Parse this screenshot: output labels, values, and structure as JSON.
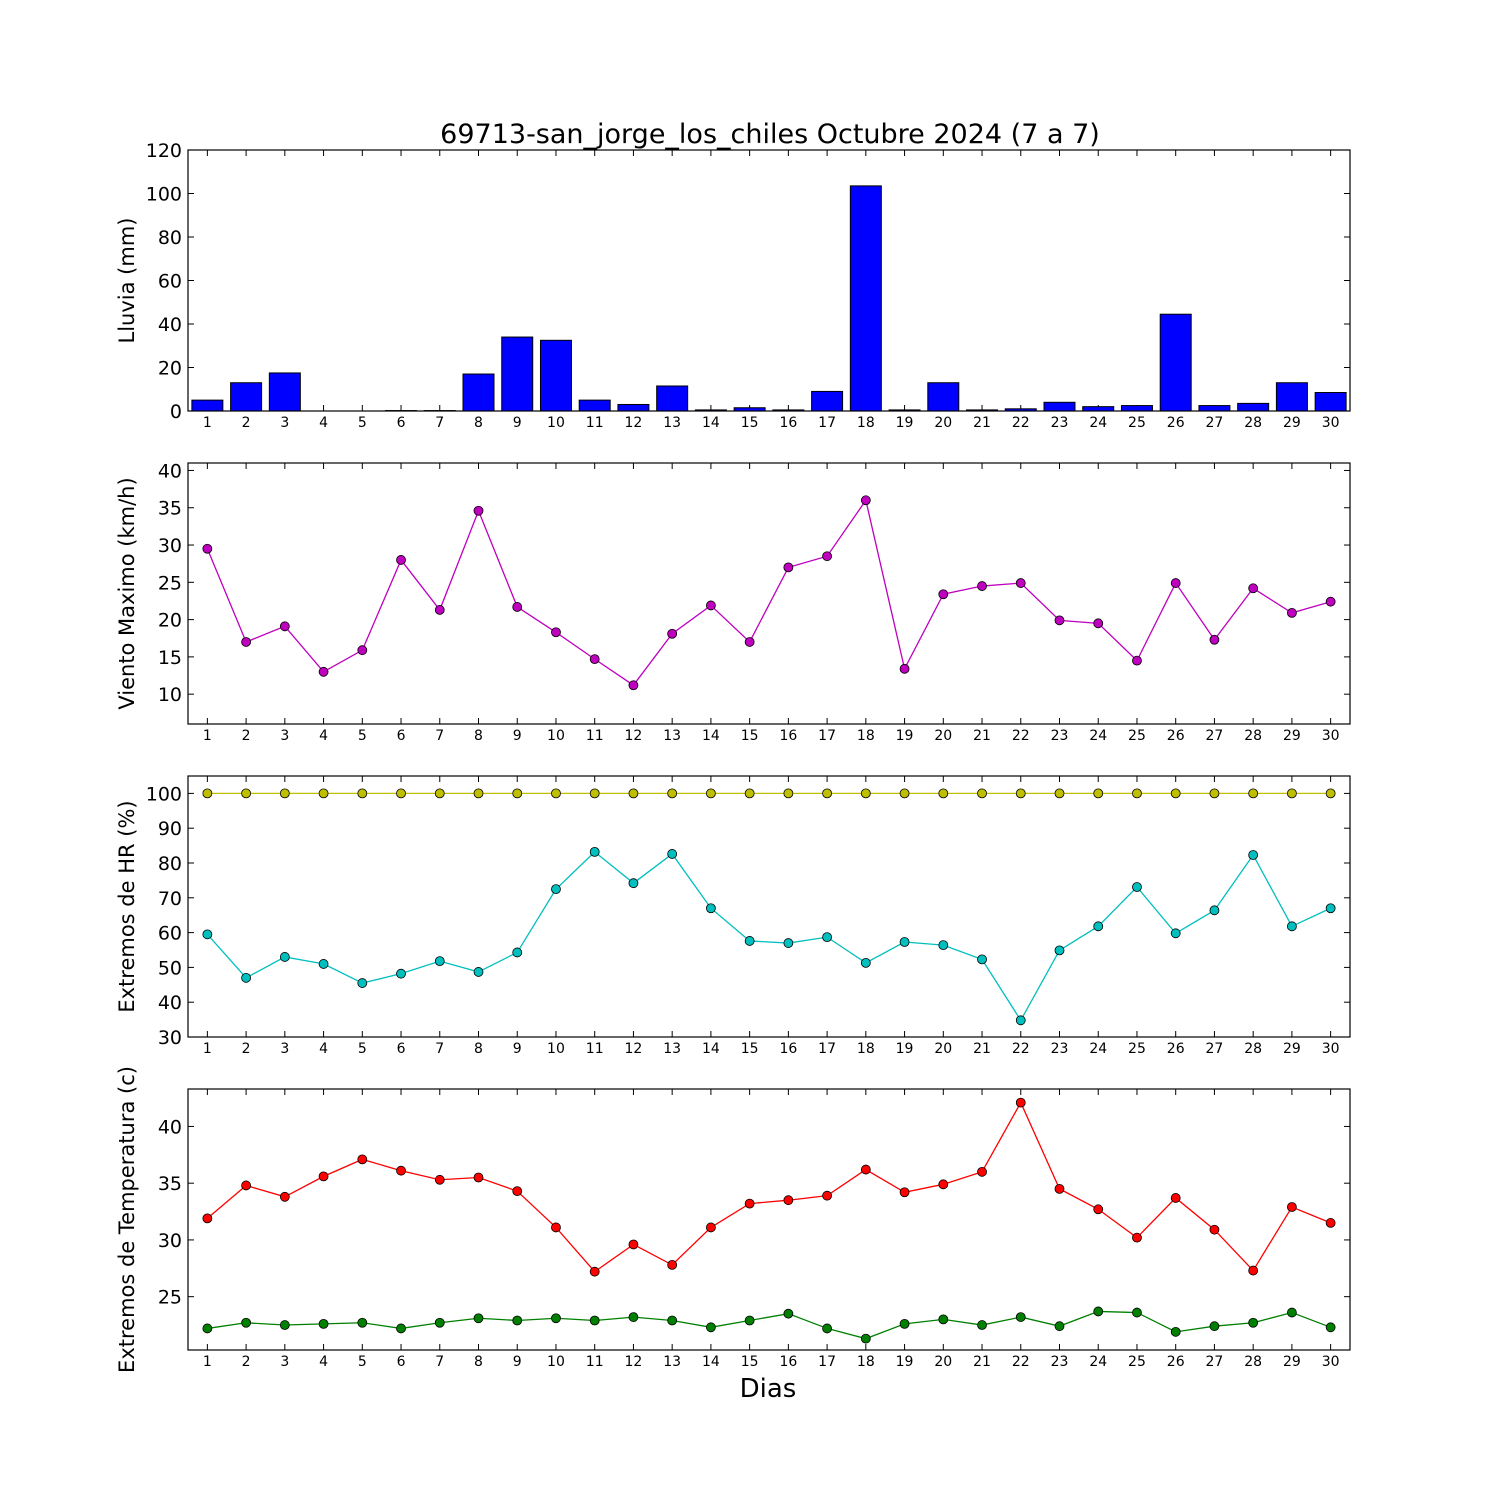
{
  "chart_data": {
    "title": "69713-san_jorge_los_chiles Octubre 2024  (7 a 7)",
    "xlabel": "Dias",
    "x": [
      1,
      2,
      3,
      4,
      5,
      6,
      7,
      8,
      9,
      10,
      11,
      12,
      13,
      14,
      15,
      16,
      17,
      18,
      19,
      20,
      21,
      22,
      23,
      24,
      25,
      26,
      27,
      28,
      29,
      30
    ],
    "panels": [
      {
        "type": "bar",
        "ylabel": "Lluvia (mm)",
        "ylim": [
          0,
          120
        ],
        "yticks": [
          0,
          20,
          40,
          60,
          80,
          100,
          120
        ],
        "series": [
          {
            "color": "#0000ff",
            "values": [
              5,
              13,
              17.5,
              0,
              0,
              0.2,
              0.2,
              17,
              34,
              32.5,
              5,
              3,
              11.5,
              0.5,
              1.5,
              0.5,
              9,
              103.5,
              0.5,
              13,
              0.5,
              1,
              4,
              2,
              2.5,
              44.5,
              2.5,
              3.5,
              13,
              8.5
            ]
          }
        ]
      },
      {
        "type": "line",
        "ylabel": "Viento Maximo (km/h)",
        "ylim": [
          6,
          41
        ],
        "yticks": [
          10,
          15,
          20,
          25,
          30,
          35,
          40
        ],
        "series": [
          {
            "color": "#bf00bf",
            "values": [
              29.5,
              17,
              19.1,
              13,
              15.9,
              28,
              21.3,
              34.6,
              21.7,
              18.3,
              14.7,
              11.2,
              18.1,
              21.9,
              17,
              27,
              28.5,
              36,
              13.4,
              23.4,
              24.5,
              24.9,
              19.9,
              19.5,
              14.5,
              24.9,
              17.3,
              24.2,
              20.9,
              22.4
            ]
          }
        ]
      },
      {
        "type": "line",
        "ylabel": "Extremos de HR (%)",
        "ylim": [
          30,
          105
        ],
        "yticks": [
          30,
          40,
          50,
          60,
          70,
          80,
          90,
          100
        ],
        "series": [
          {
            "color": "#bfbf00",
            "values": [
              100,
              100,
              100,
              100,
              100,
              100,
              100,
              100,
              100,
              100,
              100,
              100,
              100,
              100,
              100,
              100,
              100,
              100,
              100,
              100,
              100,
              100,
              100,
              100,
              100,
              100,
              100,
              100,
              100,
              100
            ]
          },
          {
            "color": "#00bfbf",
            "values": [
              59.5,
              47,
              53,
              51,
              45.5,
              48.2,
              51.8,
              48.7,
              54.3,
              72.5,
              83.2,
              74.2,
              82.6,
              67,
              57.6,
              57,
              58.7,
              51.3,
              57.3,
              56.4,
              52.3,
              34.8,
              54.9,
              61.8,
              73.1,
              59.8,
              66.4,
              82.3,
              61.8,
              67
            ]
          }
        ]
      },
      {
        "type": "line",
        "ylabel": "Extremos de Temperatura (c)",
        "ylim": [
          20.3,
          43.3
        ],
        "yticks": [
          25,
          30,
          35,
          40
        ],
        "series": [
          {
            "color": "#ff0000",
            "values": [
              31.9,
              34.8,
              33.8,
              35.6,
              37.1,
              36.1,
              35.3,
              35.5,
              34.3,
              31.1,
              27.2,
              29.6,
              27.8,
              31.1,
              33.2,
              33.5,
              33.9,
              36.2,
              34.2,
              34.9,
              36,
              42.1,
              34.5,
              32.7,
              30.2,
              33.7,
              30.9,
              27.3,
              32.9,
              31.5
            ]
          },
          {
            "color": "#008000",
            "values": [
              22.2,
              22.7,
              22.5,
              22.6,
              22.7,
              22.2,
              22.7,
              23.1,
              22.9,
              23.1,
              22.9,
              23.2,
              22.9,
              22.3,
              22.9,
              23.5,
              22.2,
              21.3,
              22.6,
              23,
              22.5,
              23.2,
              22.4,
              23.7,
              23.6,
              21.9,
              22.4,
              22.7,
              23.6,
              22.3
            ]
          }
        ]
      }
    ]
  }
}
